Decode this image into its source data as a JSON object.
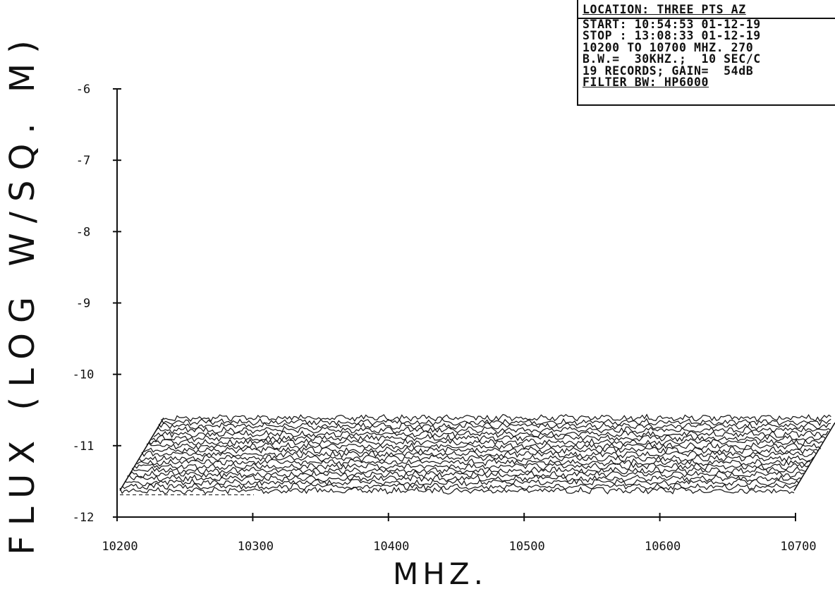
{
  "chart_data": {
    "type": "line",
    "title": "",
    "xlabel": "MHZ.",
    "ylabel": "FLUX (LOG W/SQ. M)",
    "x_ticks": [
      "10200",
      "10300",
      "10400",
      "10500",
      "10600",
      "10700"
    ],
    "y_ticks": [
      "-6",
      "-7",
      "-8",
      "-9",
      "-10",
      "-11",
      "-12"
    ],
    "xlim": [
      10200,
      10700
    ],
    "ylim": [
      -12,
      -6
    ],
    "grid": false,
    "style": "waterfall (3D stacked spectra, 19 records)",
    "num_records": 19,
    "flux_range_front": [
      -11.65,
      -11.45
    ],
    "approx_level": -11.55,
    "line_color": "#111111"
  },
  "info_box": {
    "lines": [
      "LOCATION: THREE PTS AZ",
      "START: 10:54:53 01-12-19",
      "STOP : 13:08:33 01-12-19",
      "10200 TO 10700 MHZ. 270",
      "B.W.=  30KHZ.;  10 SEC/C",
      "19 RECORDS; GAIN=  54dB",
      "FILTER BW: HP6000"
    ]
  }
}
